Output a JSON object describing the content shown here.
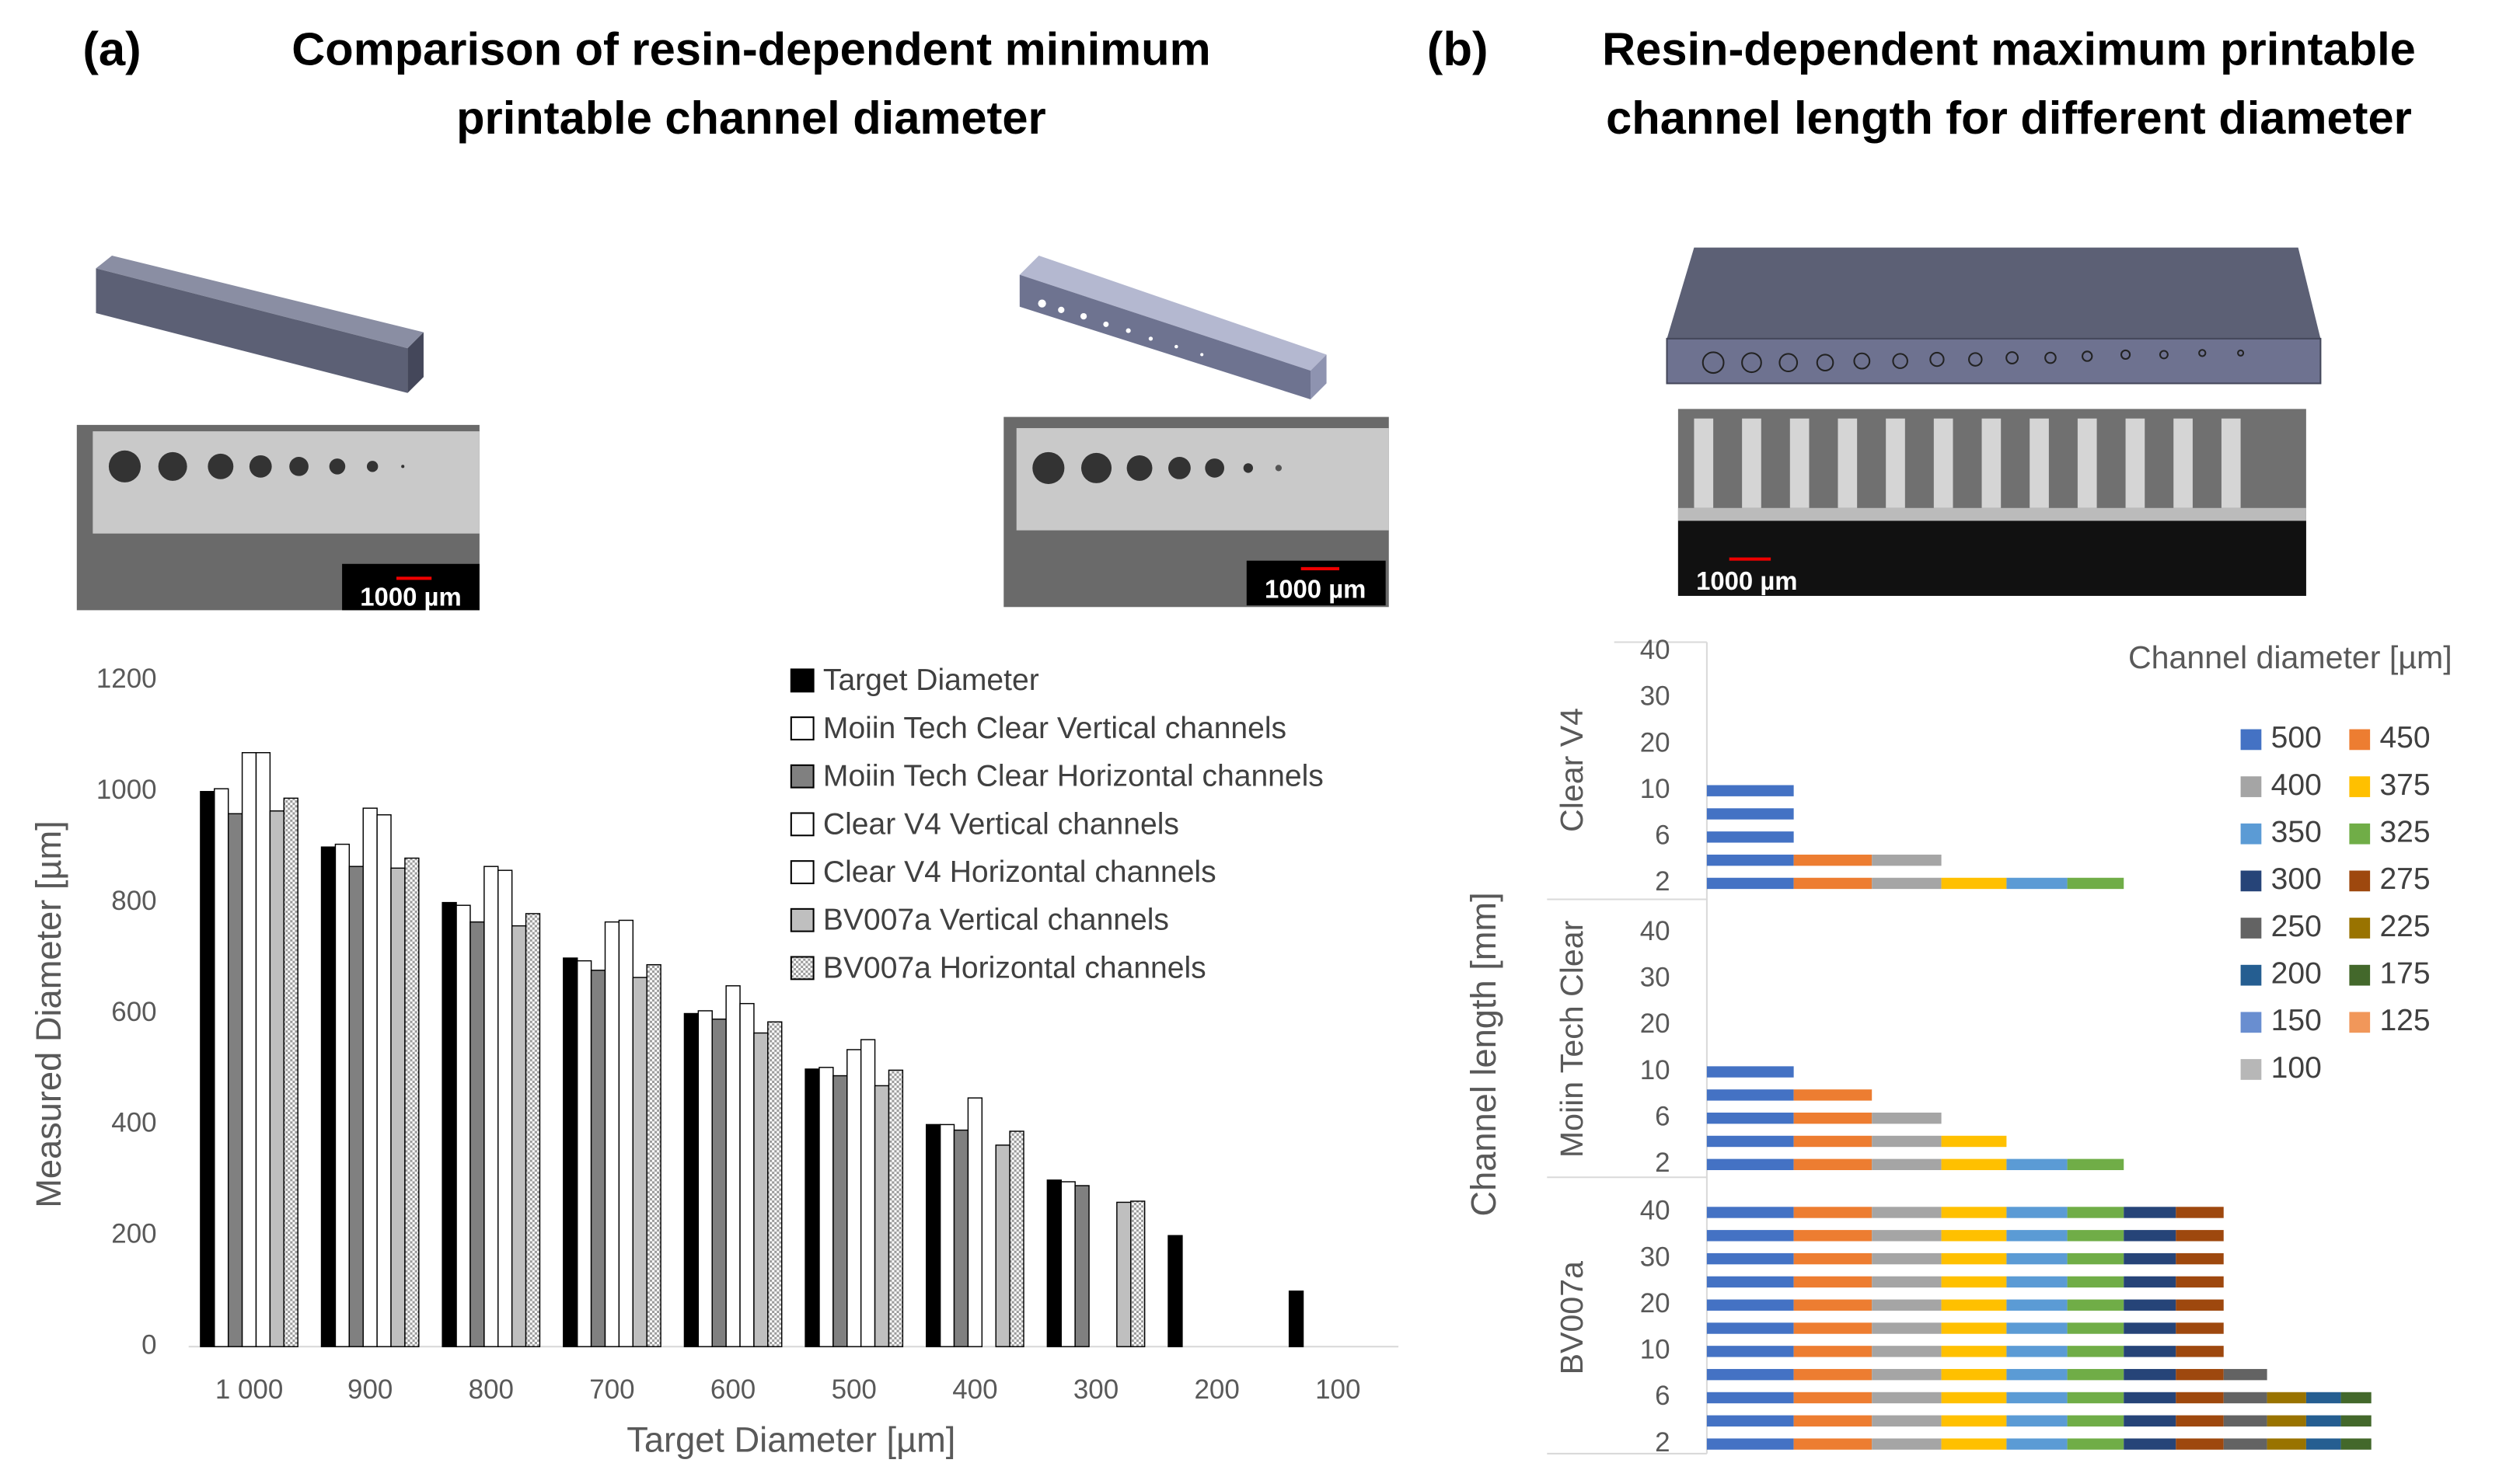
{
  "chart_data": [
    {
      "type": "bar",
      "panel_label": "(a)",
      "title": [
        "Comparison of resin-dependent minimum",
        "printable channel diameter"
      ],
      "image_labels": [
        "1000  µm",
        "1000  µm"
      ],
      "xlabel": "Target Diameter [µm]",
      "ylabel": "Measured Diameter [µm]",
      "categories": [
        "1 000",
        "900",
        "800",
        "700",
        "600",
        "500",
        "400",
        "300",
        "200",
        "100"
      ],
      "ylim": [
        0,
        1200
      ],
      "yticks": [
        0,
        200,
        400,
        600,
        800,
        1000,
        1200
      ],
      "grid": false,
      "series": [
        {
          "name": "Target Diameter",
          "color": "#000000",
          "values": [
            1000,
            900,
            800,
            700,
            600,
            500,
            400,
            300,
            200,
            100
          ]
        },
        {
          "name": "Moiin Tech Clear Vertical channels",
          "color": "#ffffff",
          "values": [
            1005,
            905,
            795,
            695,
            605,
            503,
            400,
            297,
            null,
            null
          ]
        },
        {
          "name": "Moiin Tech Clear Horizontal channels",
          "color": "#808080",
          "values": [
            960,
            865,
            765,
            678,
            590,
            488,
            390,
            290,
            null,
            null
          ]
        },
        {
          "name": "Clear V4 Vertical channels",
          "color": "#ffffff",
          "values": [
            1070,
            970,
            865,
            765,
            650,
            535,
            448,
            null,
            null,
            null
          ]
        },
        {
          "name": "Clear V4 Horizontal channels",
          "color": "#ffffff",
          "values": [
            1070,
            958,
            858,
            768,
            618,
            553,
            null,
            null,
            null,
            null
          ]
        },
        {
          "name": "BV007a Vertical channels",
          "color": "#bfbfbf",
          "values": [
            965,
            862,
            758,
            665,
            565,
            470,
            363,
            260,
            null,
            null
          ]
        },
        {
          "name": "BV007a Horizontal channels",
          "color": "#9a9a9a",
          "pattern": "checker",
          "values": [
            988,
            880,
            780,
            688,
            585,
            498,
            388,
            262,
            null,
            null
          ]
        }
      ]
    },
    {
      "type": "barh",
      "stacked": true,
      "panel_label": "(b)",
      "title": [
        "Resin-dependent maximum printable",
        "channel length for different diameter"
      ],
      "image_labels": [
        "1000  µm"
      ],
      "ylabel": "Channel length [mm]",
      "legend_title": "Channel diameter [µm]",
      "groups": [
        "Clear V4",
        "Moiin Tech Clear",
        "BV007a"
      ],
      "categories": [
        "2",
        null,
        "6",
        null,
        "10",
        null,
        "20",
        null,
        "30",
        null,
        "40"
      ],
      "xlim": [
        0,
        4600
      ],
      "series": [
        {
          "name": "500",
          "color": "#4472c4",
          "values": [
            [
              500,
              500,
              500,
              500,
              500,
              null,
              null,
              null,
              null,
              null,
              null
            ],
            [
              500,
              500,
              500,
              500,
              500,
              null,
              null,
              null,
              null,
              null,
              null
            ],
            [
              500,
              500,
              500,
              500,
              500,
              500,
              500,
              500,
              500,
              500,
              500
            ]
          ]
        },
        {
          "name": "450",
          "color": "#ed7d31",
          "values": [
            [
              450,
              450,
              null,
              null,
              null,
              null,
              null,
              null,
              null,
              null,
              null
            ],
            [
              450,
              450,
              450,
              450,
              null,
              null,
              null,
              null,
              null,
              null,
              null
            ],
            [
              450,
              450,
              450,
              450,
              450,
              450,
              450,
              450,
              450,
              450,
              450
            ]
          ]
        },
        {
          "name": "400",
          "color": "#a5a5a5",
          "values": [
            [
              400,
              400,
              null,
              null,
              null,
              null,
              null,
              null,
              null,
              null,
              null
            ],
            [
              400,
              400,
              400,
              null,
              null,
              null,
              null,
              null,
              null,
              null,
              null
            ],
            [
              400,
              400,
              400,
              400,
              400,
              400,
              400,
              400,
              400,
              400,
              400
            ]
          ]
        },
        {
          "name": "375",
          "color": "#ffc000",
          "values": [
            [
              375,
              null,
              null,
              null,
              null,
              null,
              null,
              null,
              null,
              null,
              null
            ],
            [
              375,
              375,
              null,
              null,
              null,
              null,
              null,
              null,
              null,
              null,
              null
            ],
            [
              375,
              375,
              375,
              375,
              375,
              375,
              375,
              375,
              375,
              375,
              375
            ]
          ]
        },
        {
          "name": "350",
          "color": "#5b9bd5",
          "values": [
            [
              350,
              null,
              null,
              null,
              null,
              null,
              null,
              null,
              null,
              null,
              null
            ],
            [
              350,
              null,
              null,
              null,
              null,
              null,
              null,
              null,
              null,
              null,
              null
            ],
            [
              350,
              350,
              350,
              350,
              350,
              350,
              350,
              350,
              350,
              350,
              350
            ]
          ]
        },
        {
          "name": "325",
          "color": "#70ad47",
          "values": [
            [
              325,
              null,
              null,
              null,
              null,
              null,
              null,
              null,
              null,
              null,
              null
            ],
            [
              325,
              null,
              null,
              null,
              null,
              null,
              null,
              null,
              null,
              null,
              null
            ],
            [
              325,
              325,
              325,
              325,
              325,
              325,
              325,
              325,
              325,
              325,
              325
            ]
          ]
        },
        {
          "name": "300",
          "color": "#264478",
          "values": [
            [
              null,
              null,
              null,
              null,
              null,
              null,
              null,
              null,
              null,
              null,
              null
            ],
            [
              null,
              null,
              null,
              null,
              null,
              null,
              null,
              null,
              null,
              null,
              null
            ],
            [
              300,
              300,
              300,
              300,
              300,
              300,
              300,
              300,
              300,
              300,
              300
            ]
          ]
        },
        {
          "name": "275",
          "color": "#9e480e",
          "values": [
            [
              null,
              null,
              null,
              null,
              null,
              null,
              null,
              null,
              null,
              null,
              null
            ],
            [
              null,
              null,
              null,
              null,
              null,
              null,
              null,
              null,
              null,
              null,
              null
            ],
            [
              275,
              275,
              275,
              275,
              275,
              275,
              275,
              275,
              275,
              275,
              275
            ]
          ]
        },
        {
          "name": "250",
          "color": "#636363",
          "values": [
            [
              null,
              null,
              null,
              null,
              null,
              null,
              null,
              null,
              null,
              null,
              null
            ],
            [
              null,
              null,
              null,
              null,
              null,
              null,
              null,
              null,
              null,
              null,
              null
            ],
            [
              250,
              250,
              250,
              250,
              null,
              null,
              null,
              null,
              null,
              null,
              null
            ]
          ]
        },
        {
          "name": "225",
          "color": "#997300",
          "values": [
            [
              null,
              null,
              null,
              null,
              null,
              null,
              null,
              null,
              null,
              null,
              null
            ],
            [
              null,
              null,
              null,
              null,
              null,
              null,
              null,
              null,
              null,
              null,
              null
            ],
            [
              225,
              225,
              225,
              null,
              null,
              null,
              null,
              null,
              null,
              null,
              null
            ]
          ]
        },
        {
          "name": "200",
          "color": "#255e91",
          "values": [
            [
              null,
              null,
              null,
              null,
              null,
              null,
              null,
              null,
              null,
              null,
              null
            ],
            [
              null,
              null,
              null,
              null,
              null,
              null,
              null,
              null,
              null,
              null,
              null
            ],
            [
              200,
              200,
              200,
              null,
              null,
              null,
              null,
              null,
              null,
              null,
              null
            ]
          ]
        },
        {
          "name": "175",
          "color": "#43682b",
          "values": [
            [
              null,
              null,
              null,
              null,
              null,
              null,
              null,
              null,
              null,
              null,
              null
            ],
            [
              null,
              null,
              null,
              null,
              null,
              null,
              null,
              null,
              null,
              null,
              null
            ],
            [
              175,
              175,
              175,
              null,
              null,
              null,
              null,
              null,
              null,
              null,
              null
            ]
          ]
        },
        {
          "name": "150",
          "color": "#698ed0",
          "values": [
            [
              null,
              null,
              null,
              null,
              null,
              null,
              null,
              null,
              null,
              null,
              null
            ],
            [
              null,
              null,
              null,
              null,
              null,
              null,
              null,
              null,
              null,
              null,
              null
            ],
            [
              null,
              null,
              null,
              null,
              null,
              null,
              null,
              null,
              null,
              null,
              null
            ]
          ]
        },
        {
          "name": "125",
          "color": "#f1975a",
          "values": [
            [
              null,
              null,
              null,
              null,
              null,
              null,
              null,
              null,
              null,
              null,
              null
            ],
            [
              null,
              null,
              null,
              null,
              null,
              null,
              null,
              null,
              null,
              null,
              null
            ],
            [
              null,
              null,
              null,
              null,
              null,
              null,
              null,
              null,
              null,
              null,
              null
            ]
          ]
        },
        {
          "name": "100",
          "color": "#b7b7b7",
          "values": [
            [
              null,
              null,
              null,
              null,
              null,
              null,
              null,
              null,
              null,
              null,
              null
            ],
            [
              null,
              null,
              null,
              null,
              null,
              null,
              null,
              null,
              null,
              null,
              null
            ],
            [
              null,
              null,
              null,
              null,
              null,
              null,
              null,
              null,
              null,
              null,
              null
            ]
          ]
        }
      ]
    }
  ]
}
